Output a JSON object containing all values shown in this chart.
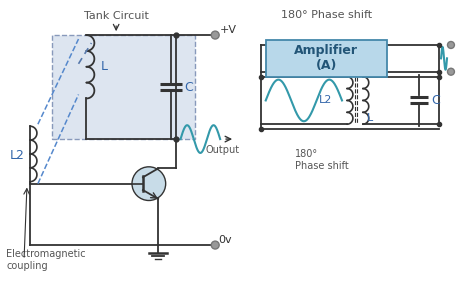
{
  "bg_color": "#ffffff",
  "tank_circuit_label": "Tank Circuit",
  "plus_v_label": "+V",
  "zero_v_label": "0v",
  "output_label": "Output",
  "l_label": "L",
  "c_label": "C",
  "l2_label": "L2",
  "em_label": "Electromagnetic\ncoupling",
  "phase_shift_top": "180° Phase shift",
  "phase_shift_bot": "180°\nPhase shift",
  "amplifier_label": "Amplifier\n(A)",
  "amplifier_box_color": "#b8d8ea",
  "tank_box_color": "#dde5f0",
  "c2_label": "C",
  "l2r_label": "L2",
  "lr_label": "L",
  "wave_color": "#3399aa",
  "line_color": "#333333",
  "blue_dashed_color": "#5588cc",
  "terminal_color": "#888888",
  "font_size": 7,
  "label_color": "#3366aa",
  "text_color": "#555555"
}
